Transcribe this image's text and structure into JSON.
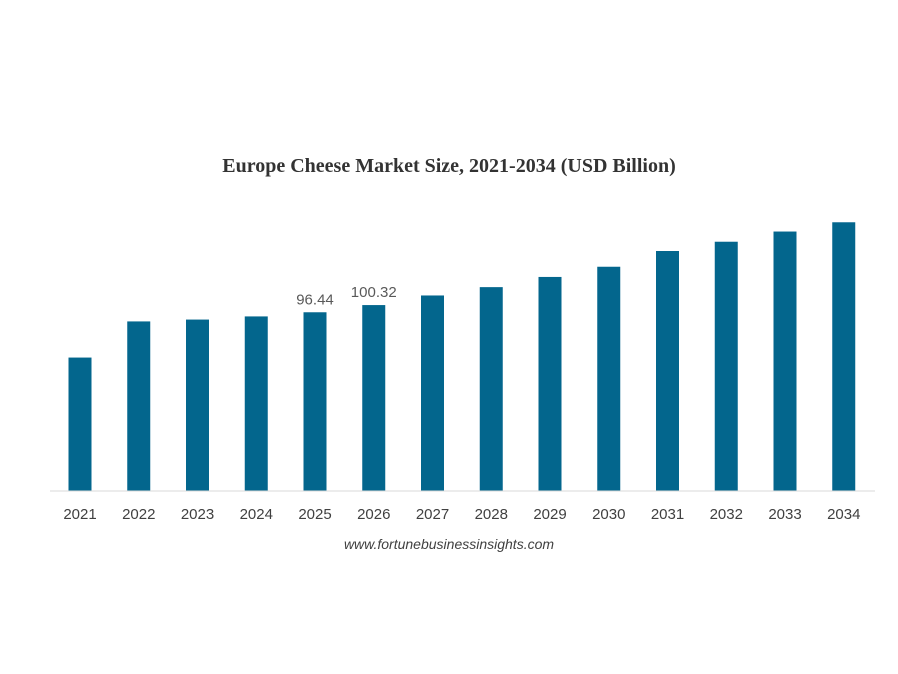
{
  "chart_data": {
    "type": "bar",
    "title": "Europe Cheese Market Size, 2021-2034 (USD Billion)",
    "xlabel": "",
    "ylabel": "",
    "categories": [
      "2021",
      "2022",
      "2023",
      "2024",
      "2025",
      "2026",
      "2027",
      "2028",
      "2029",
      "2030",
      "2031",
      "2032",
      "2033",
      "2034"
    ],
    "values": [
      72.0,
      91.5,
      92.5,
      94.2,
      96.44,
      100.32,
      105.5,
      110.0,
      115.5,
      121.0,
      129.5,
      134.5,
      140.0,
      145.0
    ],
    "data_labels": [
      null,
      null,
      null,
      null,
      "96.44",
      "100.32",
      null,
      null,
      null,
      null,
      null,
      null,
      null,
      null
    ],
    "ylim": [
      0,
      150
    ],
    "bar_color": "#03668d",
    "axis_color": "#d9d9d9",
    "grid": false,
    "legend": "none"
  },
  "source": "www.fortunebusinessinsights.com"
}
